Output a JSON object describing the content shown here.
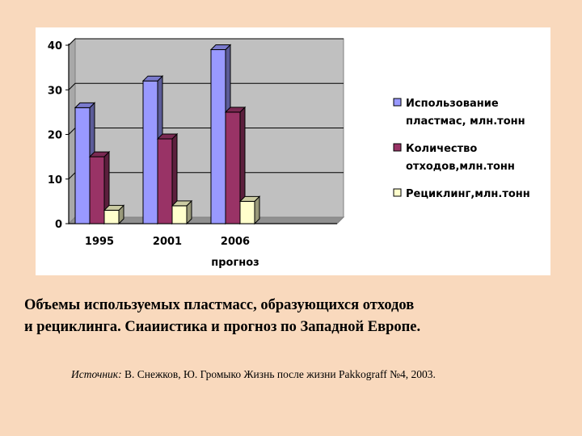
{
  "chart_data": {
    "type": "bar",
    "categories": [
      "1995",
      "2001",
      "2006"
    ],
    "category_sublabel": "прогноз",
    "series": [
      {
        "name": "Использование пластмас, млн.тонн",
        "values": [
          26,
          32,
          39
        ],
        "color": "#9999ff"
      },
      {
        "name": "Количество отходов,млн.тонн",
        "values": [
          15,
          19,
          25
        ],
        "color": "#993366"
      },
      {
        "name": "Рециклинг,млн.тонн",
        "values": [
          3,
          4,
          5
        ],
        "color": "#ffffcc"
      }
    ],
    "legend_lines": [
      [
        "Использование",
        "пластмас, млн.тонн"
      ],
      [
        "Количество",
        "отходов,млн.тонн"
      ],
      [
        "Рециклинг,млн.тонн"
      ]
    ],
    "y_ticks": [
      0,
      10,
      20,
      30,
      40
    ],
    "ylim": [
      0,
      40
    ],
    "grid": true,
    "legend_position": "right",
    "plot_background": "#c0c0c0"
  },
  "caption": {
    "line1": "Объемы используемых пластмасс, образующихся отходов",
    "line2": "и рециклинга. Сиаиистика и прогноз по Западной  Европе."
  },
  "source": {
    "label": "Источник:",
    "text": " В. Снежков, Ю. Громыко Жизнь после жизни Pakkograff №4, 2003."
  }
}
